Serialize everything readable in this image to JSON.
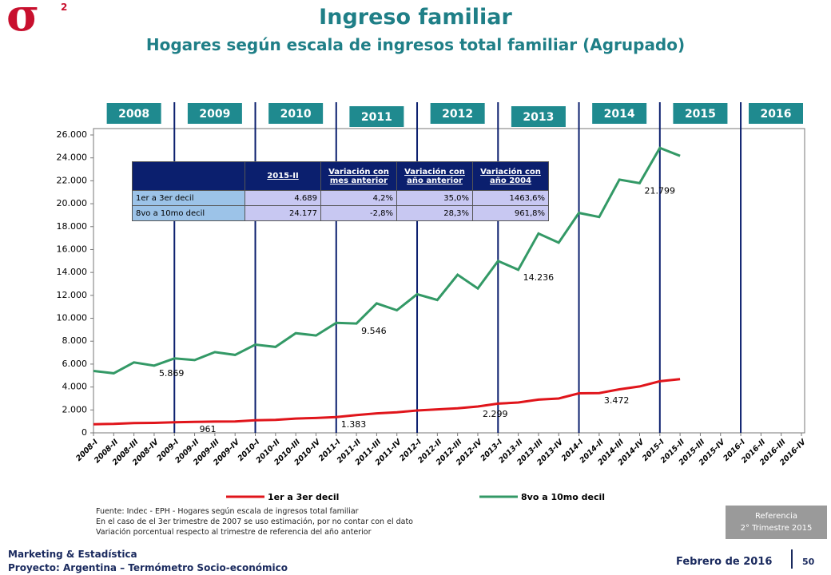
{
  "logo": {
    "symbol": "σ",
    "superscript": "2"
  },
  "header": {
    "title": "Ingreso familiar",
    "subtitle": "Hogares según escala de ingresos total familiar (Agrupado)"
  },
  "chart_data": {
    "type": "line",
    "year_labels": [
      "2008",
      "2009",
      "2010",
      "2011",
      "2012",
      "2013",
      "2014",
      "2015",
      "2016"
    ],
    "categories": [
      "2008-I",
      "2008-II",
      "2008-III",
      "2008-IV",
      "2009-I",
      "2009-II",
      "2009-III",
      "2009-IV",
      "2010-I",
      "2010-II",
      "2010-III",
      "2010-IV",
      "2011-I",
      "2011-II",
      "2011-III",
      "2011-IV",
      "2012-I",
      "2012-II",
      "2012-III",
      "2012-IV",
      "2013-I",
      "2013-II",
      "2013-III",
      "2013-IV",
      "2014-I",
      "2014-II",
      "2014-III",
      "2014-IV",
      "2015-I",
      "2015-II",
      "2015-III",
      "2015-IV",
      "2016-I",
      "2016-II",
      "2016-III",
      "2016-IV"
    ],
    "series": [
      {
        "name": "1er a 3er decil",
        "color": "#e0151b",
        "values": [
          750,
          780,
          850,
          870,
          920,
          961,
          980,
          1000,
          1100,
          1130,
          1250,
          1300,
          1383,
          1550,
          1700,
          1800,
          1950,
          2050,
          2150,
          2299,
          2550,
          2650,
          2900,
          3000,
          3450,
          3472,
          3800,
          4050,
          4500,
          4689,
          null,
          null,
          null,
          null,
          null,
          null
        ],
        "value_labels": [
          null,
          null,
          null,
          null,
          null,
          "961",
          null,
          null,
          null,
          null,
          null,
          null,
          "1.383",
          null,
          null,
          null,
          null,
          null,
          null,
          "2.299",
          null,
          null,
          null,
          null,
          null,
          "3.472",
          null,
          null,
          null,
          null,
          null,
          null,
          null,
          null,
          null,
          null
        ]
      },
      {
        "name": "8vo a 10mo decil",
        "color": "#339966",
        "values": [
          5400,
          5200,
          6150,
          5869,
          6500,
          6350,
          7050,
          6800,
          7700,
          7500,
          8700,
          8500,
          9600,
          9546,
          11300,
          10700,
          12100,
          11600,
          13800,
          12600,
          15000,
          14236,
          17400,
          16600,
          19200,
          18844,
          22100,
          21799,
          24874,
          24177,
          null,
          null,
          null,
          null,
          null,
          null
        ],
        "value_labels": [
          null,
          null,
          null,
          "5.869",
          null,
          null,
          null,
          null,
          null,
          null,
          null,
          null,
          null,
          "9.546",
          null,
          null,
          null,
          null,
          null,
          null,
          null,
          "14.236",
          null,
          null,
          null,
          null,
          null,
          "21.799",
          null,
          null,
          null,
          null,
          null,
          null,
          null,
          null
        ]
      }
    ],
    "ylim": [
      0,
      26000
    ],
    "yticks": [
      0,
      {
        "value": 2000,
        "label": "2.000"
      },
      {
        "value": 4000,
        "label": "4.000"
      },
      {
        "value": 6000,
        "label": "6.000"
      },
      {
        "value": 8000,
        "label": "8.000"
      },
      {
        "value": 10000,
        "label": "10.000"
      },
      {
        "value": 12000,
        "label": "12.000"
      },
      {
        "value": 14000,
        "label": "14.000"
      },
      {
        "value": 16000,
        "label": "16.000"
      },
      {
        "value": 18000,
        "label": "18.000"
      },
      {
        "value": 20000,
        "label": "20.000"
      },
      {
        "value": 22000,
        "label": "22.000"
      },
      {
        "value": 24000,
        "label": "24.000"
      },
      {
        "value": 26000,
        "label": "26.000"
      }
    ],
    "legend": "bottom",
    "grid": false
  },
  "table": {
    "header": [
      "2015-II",
      "Variación con mes anterior",
      "Variación con año anterior",
      "Variación con año 2004"
    ],
    "rows": [
      [
        "1er a 3er decil",
        "4.689",
        "4,2%",
        "35,0%",
        "1463,6%"
      ],
      [
        "8vo a 10mo decil",
        "24.177",
        "-2,8%",
        "28,3%",
        "961,8%"
      ]
    ]
  },
  "notes": [
    "Fuente: Indec - EPH - Hogares según escala de ingresos total familiar",
    "En el caso de el 3er trimestre de 2007 se uso estimación, por no contar con el dato",
    "Variación porcentual respecto al trimestre de referencia del año anterior"
  ],
  "reference": [
    "Referencia",
    "2° Trimestre 2015"
  ],
  "footer": {
    "line1": "Marketing & Estadística",
    "line2": "Proyecto: Argentina – Termómetro Socio-económico",
    "date": "Febrero de 2016",
    "page": "50"
  }
}
